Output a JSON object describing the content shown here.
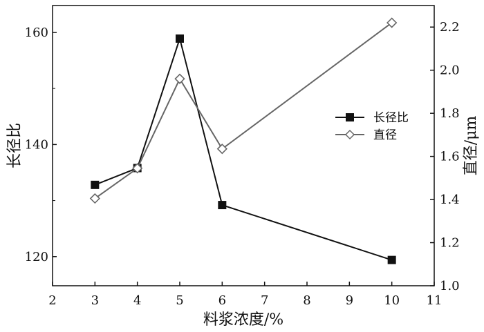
{
  "chart_data": {
    "type": "line",
    "xlabel": "料浆浓度/%",
    "x": [
      3,
      4,
      5,
      6,
      10
    ],
    "xlim": [
      2,
      11
    ],
    "xticks": [
      2,
      3,
      4,
      5,
      6,
      7,
      8,
      9,
      10,
      11
    ],
    "y_left": {
      "label": "长径比",
      "lim": [
        114.8,
        164.8
      ],
      "ticks": [
        120,
        140,
        160
      ]
    },
    "y_right": {
      "label": "直径/μm",
      "lim": [
        1.0,
        2.3
      ],
      "ticks": [
        "1.0",
        "1.2",
        "1.4",
        "1.6",
        "1.8",
        "2.0",
        "2.2"
      ]
    },
    "series": [
      {
        "name": "长径比",
        "axis": "left",
        "marker": "filled-square",
        "color": "#111111",
        "values": [
          132.8,
          135.8,
          158.9,
          129.2,
          119.4
        ]
      },
      {
        "name": "直径",
        "axis": "right",
        "marker": "open-diamond",
        "color": "#666666",
        "values": [
          1.405,
          1.545,
          1.96,
          1.635,
          2.22
        ]
      }
    ],
    "legend_position": "right-middle",
    "grid": false
  }
}
